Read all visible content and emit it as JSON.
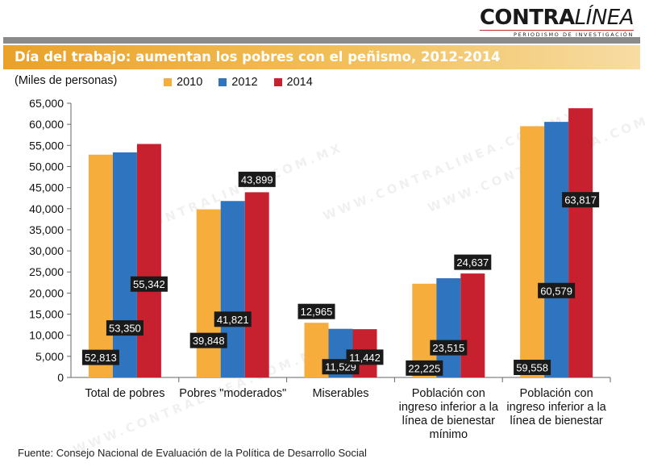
{
  "header": {
    "logo_bold": "CONTRA",
    "logo_light": "LÍNEA",
    "logo_tagline": "PERIODISMO DE INVESTIGACIÓN",
    "title": "Día del trabajo: aumentan los pobres con el peñismo, 2012-2014"
  },
  "source": "Fuente:  Consejo Nacional de Evaluación de la Política de Desarrollo Social",
  "watermark": "www.contralinea.com.mx",
  "colors": {
    "s2010": "#f6ad3b",
    "s2012": "#2f74bf",
    "s2014": "#c7202e",
    "label_bg": "#1a1a1a",
    "title_bar": "#e9a229"
  },
  "chart_data": {
    "type": "bar",
    "ylabel": "(Miles de personas)",
    "ylim": [
      0,
      65000
    ],
    "yticks": [
      0,
      5000,
      10000,
      15000,
      20000,
      25000,
      30000,
      35000,
      40000,
      45000,
      50000,
      55000,
      60000,
      65000
    ],
    "ytick_labels": [
      "0",
      "5,000",
      "10,000",
      "15,000",
      "20,000",
      "25,000",
      "30,000",
      "35,000",
      "40,000",
      "45,000",
      "50,000",
      "55,000",
      "60,000",
      "65,000"
    ],
    "grid": false,
    "legend_position": "top",
    "categories": [
      [
        "Total de pobres"
      ],
      [
        "Pobres \"moderados\""
      ],
      [
        "Miserables"
      ],
      [
        "Población con",
        "ingreso inferior a la",
        "línea de bienestar",
        "mínimo"
      ],
      [
        "Población con",
        "ingreso inferior a la",
        "línea de bienestar"
      ]
    ],
    "series": [
      {
        "name": "2010",
        "color": "#f6ad3b",
        "values": [
          52813,
          39848,
          12965,
          22225,
          59558
        ],
        "labels": [
          "52,813",
          "39,848",
          "12,965",
          "22,225",
          "59,558"
        ]
      },
      {
        "name": "2012",
        "color": "#2f74bf",
        "values": [
          53350,
          41821,
          11529,
          23515,
          60579
        ],
        "labels": [
          "53,350",
          "41,821",
          "11,529",
          "23,515",
          "60,579"
        ]
      },
      {
        "name": "2014",
        "color": "#c7202e",
        "values": [
          55342,
          43899,
          11442,
          24637,
          63817
        ],
        "labels": [
          "55,342",
          "43,899",
          "11,442",
          "24,637",
          "63,817"
        ]
      }
    ]
  }
}
